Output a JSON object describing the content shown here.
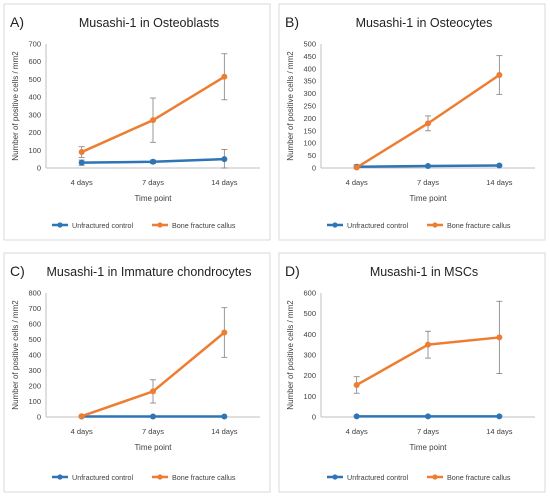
{
  "chart_data": [
    {
      "panel_label": "A)",
      "type": "line",
      "title": "Musashi-1 in Osteoblasts",
      "xlabel": "Time point",
      "ylabel": "Number of positive cells / mm2",
      "categories": [
        "4 days",
        "7 days",
        "14 days"
      ],
      "ylim": [
        0,
        700
      ],
      "yticks": [
        0,
        100,
        200,
        300,
        400,
        500,
        600,
        700
      ],
      "grid": false,
      "legend_position": "bottom",
      "series": [
        {
          "name": "Unfractured control",
          "color": "#2e75b6",
          "values": [
            30,
            35,
            50
          ],
          "error": [
            15,
            10,
            55
          ]
        },
        {
          "name": "Bone fracture callus",
          "color": "#ed7d31",
          "values": [
            90,
            270,
            515
          ],
          "error": [
            30,
            125,
            130
          ]
        }
      ]
    },
    {
      "panel_label": "B)",
      "type": "line",
      "title": "Musashi-1 in Osteocytes",
      "xlabel": "Time point",
      "ylabel": "Number of positive cells / mm2",
      "categories": [
        "4 days",
        "7 days",
        "14 days"
      ],
      "ylim": [
        0,
        500
      ],
      "yticks": [
        0,
        50,
        100,
        150,
        200,
        250,
        300,
        350,
        400,
        450,
        500
      ],
      "grid": false,
      "legend_position": "bottom",
      "series": [
        {
          "name": "Unfractured control",
          "color": "#2e75b6",
          "values": [
            5,
            8,
            10
          ],
          "error": [
            8,
            3,
            3
          ]
        },
        {
          "name": "Bone fracture callus",
          "color": "#ed7d31",
          "values": [
            2,
            180,
            375
          ],
          "error": [
            3,
            30,
            78
          ]
        }
      ]
    },
    {
      "panel_label": "C)",
      "type": "line",
      "title": "Musashi-1 in Immature chondrocytes",
      "xlabel": "Time point",
      "ylabel": "Number of positive cells / mm2",
      "categories": [
        "4 days",
        "7 days",
        "14 days"
      ],
      "ylim": [
        0,
        800
      ],
      "yticks": [
        0,
        100,
        200,
        300,
        400,
        500,
        600,
        700,
        800
      ],
      "grid": false,
      "legend_position": "bottom",
      "series": [
        {
          "name": "Unfractured control",
          "color": "#2e75b6",
          "values": [
            3,
            3,
            3
          ],
          "error": [
            0,
            0,
            0
          ]
        },
        {
          "name": "Bone fracture callus",
          "color": "#ed7d31",
          "values": [
            5,
            165,
            545
          ],
          "error": [
            8,
            75,
            160
          ]
        }
      ]
    },
    {
      "panel_label": "D)",
      "type": "line",
      "title": "Musashi-1 in MSCs",
      "xlabel": "Time point",
      "ylabel": "Number of positive cells / mm2",
      "categories": [
        "4 days",
        "7 days",
        "14 days"
      ],
      "ylim": [
        0,
        600
      ],
      "yticks": [
        0,
        100,
        200,
        300,
        400,
        500,
        600
      ],
      "grid": false,
      "legend_position": "bottom",
      "series": [
        {
          "name": "Unfractured control",
          "color": "#2e75b6",
          "values": [
            3,
            3,
            3
          ],
          "error": [
            0,
            0,
            0
          ]
        },
        {
          "name": "Bone fracture callus",
          "color": "#ed7d31",
          "values": [
            155,
            350,
            385
          ],
          "error": [
            40,
            65,
            175
          ]
        }
      ]
    }
  ]
}
